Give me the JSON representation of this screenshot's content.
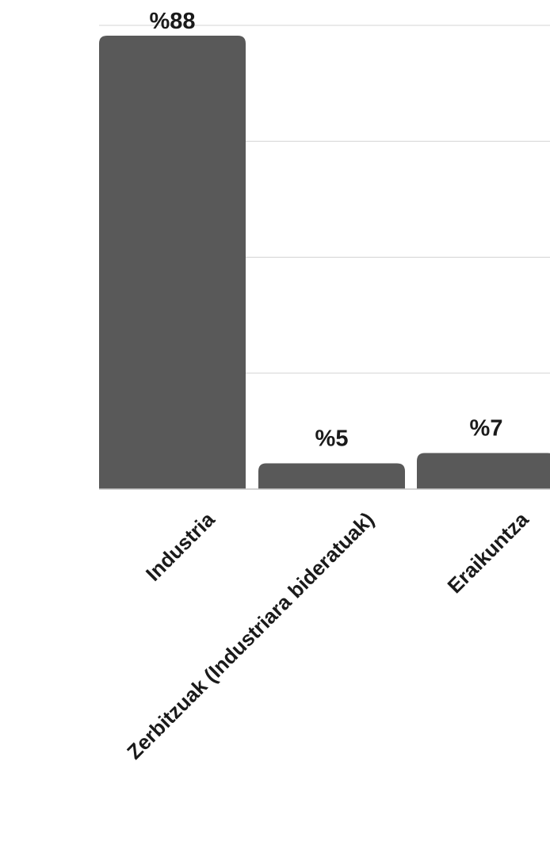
{
  "chart_data": {
    "type": "bar",
    "categories": [
      "Industria",
      "Zerbitzuak (Industriara bideratuak)",
      "Eraikuntza"
    ],
    "values": [
      88,
      5,
      7
    ],
    "value_labels": [
      "%88",
      "%5",
      "%7"
    ],
    "ylim": [
      0,
      90
    ],
    "grid": true,
    "bar_color": "#595959",
    "grid_color": "#d4d4d4"
  }
}
